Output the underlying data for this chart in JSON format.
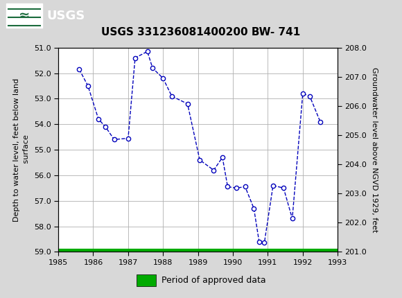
{
  "title": "USGS 331236081400200 BW- 741",
  "ylabel_left": "Depth to water level, feet below land\n surface",
  "ylabel_right": "Groundwater level above NGVD 1929, feet",
  "ylim_left_top": 51.0,
  "ylim_left_bottom": 59.0,
  "ylim_right_top": 208.0,
  "ylim_right_bottom": 201.0,
  "xlim": [
    1985,
    1993
  ],
  "xticks": [
    1985,
    1986,
    1987,
    1988,
    1989,
    1990,
    1991,
    1992,
    1993
  ],
  "yticks_left": [
    51.0,
    52.0,
    53.0,
    54.0,
    55.0,
    56.0,
    57.0,
    58.0,
    59.0
  ],
  "yticks_right": [
    208.0,
    207.0,
    206.0,
    205.0,
    204.0,
    203.0,
    202.0,
    201.0
  ],
  "data_x": [
    1985.6,
    1985.85,
    1986.15,
    1986.35,
    1986.6,
    1987.0,
    1987.2,
    1987.55,
    1987.7,
    1988.0,
    1988.25,
    1988.7,
    1989.05,
    1989.45,
    1989.7,
    1989.85,
    1990.1,
    1990.35,
    1990.6,
    1990.75,
    1990.9,
    1991.15,
    1991.45,
    1991.7,
    1992.0,
    1992.2,
    1992.5
  ],
  "data_y": [
    51.85,
    52.5,
    53.8,
    54.1,
    54.6,
    54.55,
    51.4,
    51.15,
    51.8,
    52.2,
    52.9,
    53.2,
    55.4,
    55.8,
    55.3,
    56.45,
    56.5,
    56.45,
    57.3,
    58.6,
    58.65,
    56.4,
    56.5,
    57.7,
    52.8,
    52.9,
    53.9
  ],
  "line_color": "#0000bb",
  "marker_face": "#ffffff",
  "marker_edge_color": "#0000bb",
  "marker_size": 4.5,
  "line_width": 1.0,
  "period_bar_color": "#00aa00",
  "header_bg_color": "#1a6b3c",
  "header_text_color": "#ffffff",
  "figure_bg_color": "#d8d8d8",
  "plot_bg_color": "#ffffff",
  "grid_color": "#b0b0b0",
  "title_fontsize": 11,
  "label_fontsize": 8,
  "tick_fontsize": 8,
  "legend_fontsize": 9
}
